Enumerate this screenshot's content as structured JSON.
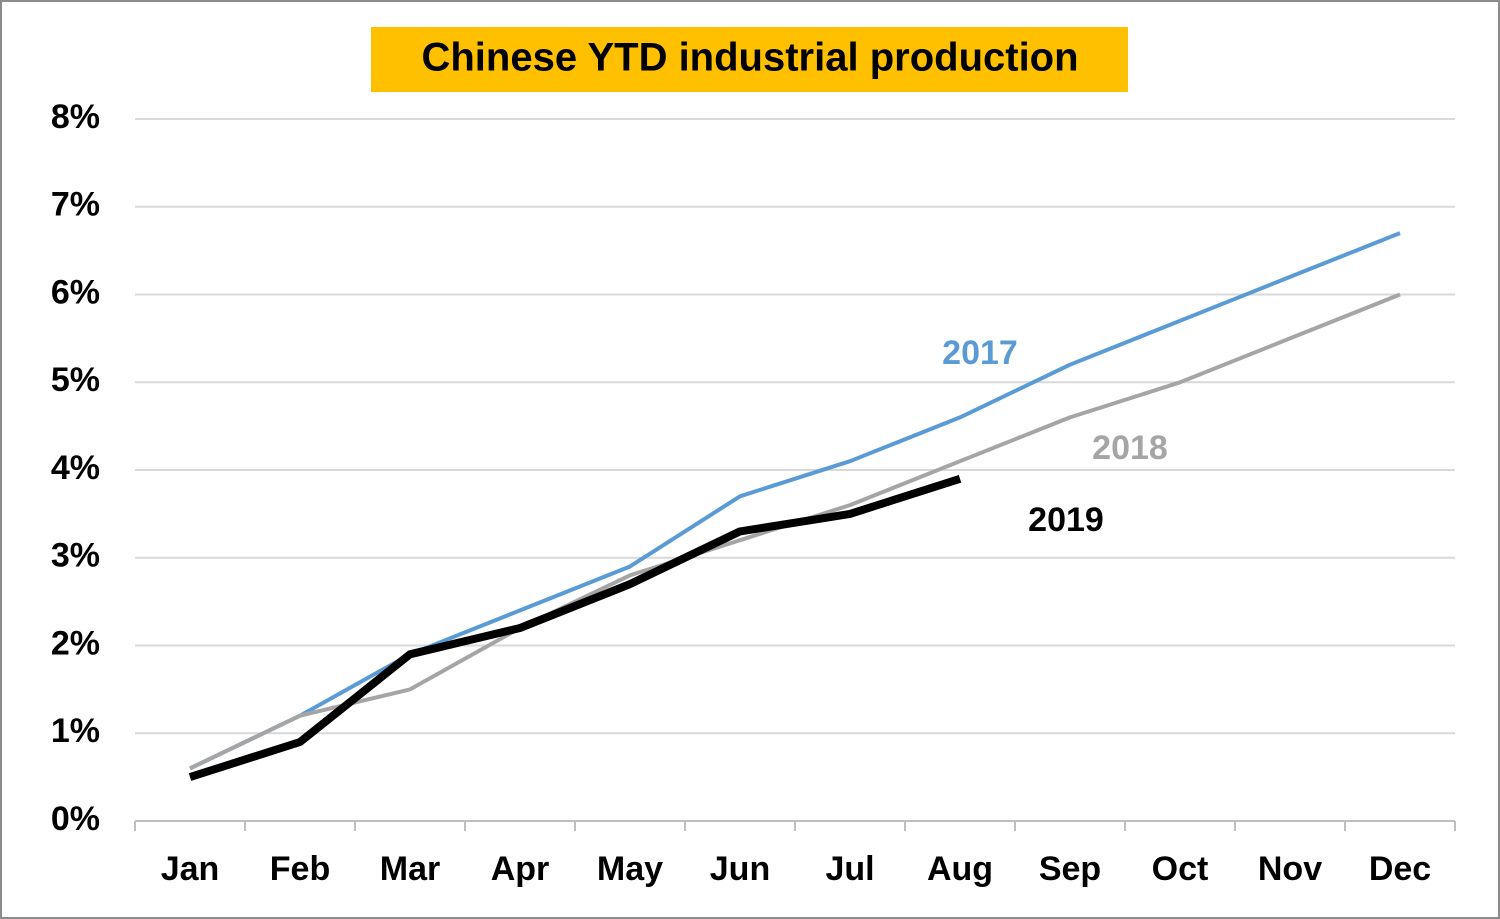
{
  "chart_data": {
    "type": "line",
    "title": "Chinese YTD industrial production",
    "categories": [
      "Jan",
      "Feb",
      "Mar",
      "Apr",
      "May",
      "Jun",
      "Jul",
      "Aug",
      "Sep",
      "Oct",
      "Nov",
      "Dec"
    ],
    "series": [
      {
        "name": "2017",
        "color": "#5b9bd5",
        "values": [
          0.6,
          1.2,
          1.9,
          2.4,
          2.9,
          3.7,
          4.1,
          4.6,
          5.2,
          5.7,
          6.2,
          6.7
        ]
      },
      {
        "name": "2018",
        "color": "#a5a5a5",
        "values": [
          0.6,
          1.2,
          1.5,
          2.2,
          2.8,
          3.2,
          3.6,
          4.1,
          4.6,
          5.0,
          5.5,
          6.0
        ]
      },
      {
        "name": "2019",
        "color": "#000000",
        "values": [
          0.5,
          0.9,
          1.9,
          2.2,
          2.7,
          3.3,
          3.5,
          3.9,
          null,
          null,
          null,
          null
        ]
      }
    ],
    "ylim": [
      0,
      8
    ],
    "yticks": [
      {
        "value": 0,
        "label": "0%"
      },
      {
        "value": 1,
        "label": "1%"
      },
      {
        "value": 2,
        "label": "2%"
      },
      {
        "value": 3,
        "label": "3%"
      },
      {
        "value": 4,
        "label": "4%"
      },
      {
        "value": 5,
        "label": "5%"
      },
      {
        "value": 6,
        "label": "6%"
      },
      {
        "value": 7,
        "label": "7%"
      },
      {
        "value": 8,
        "label": "8%"
      }
    ],
    "grid": true
  }
}
